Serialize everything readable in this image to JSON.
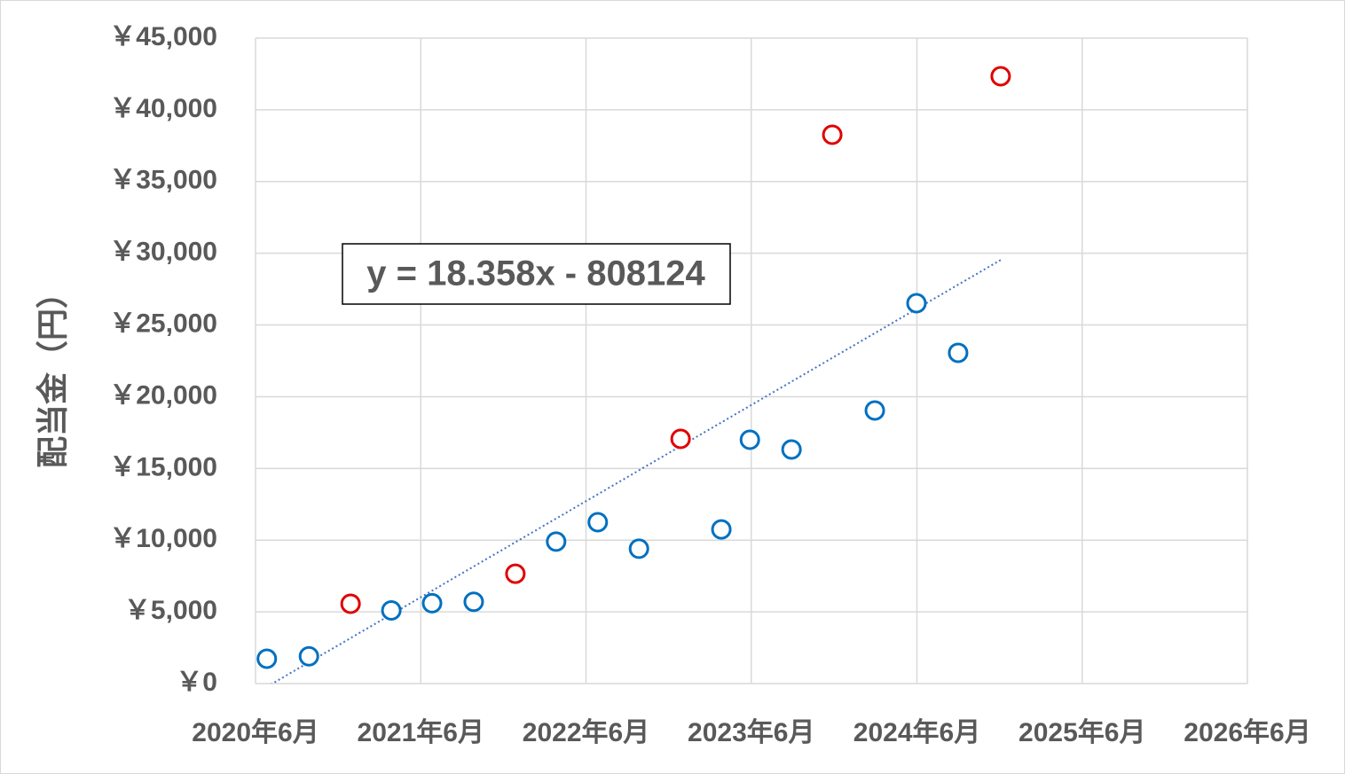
{
  "chart_data": {
    "type": "scatter",
    "y_label": "配当金（円）",
    "xlim": [
      43983,
      46174
    ],
    "xticks": [
      {
        "value": 43983,
        "label": "2020年6月"
      },
      {
        "value": 44348,
        "label": "2021年6月"
      },
      {
        "value": 44713,
        "label": "2022年6月"
      },
      {
        "value": 45078,
        "label": "2023年6月"
      },
      {
        "value": 45444,
        "label": "2024年6月"
      },
      {
        "value": 45809,
        "label": "2025年6月"
      },
      {
        "value": 46174,
        "label": "2026年6月"
      }
    ],
    "ylim": [
      0,
      45000
    ],
    "yticks": [
      {
        "value": 0,
        "label": "￥0"
      },
      {
        "value": 5000,
        "label": "￥5,000"
      },
      {
        "value": 10000,
        "label": "￥10,000"
      },
      {
        "value": 15000,
        "label": "￥15,000"
      },
      {
        "value": 20000,
        "label": "￥20,000"
      },
      {
        "value": 25000,
        "label": "￥25,000"
      },
      {
        "value": 30000,
        "label": "￥30,000"
      },
      {
        "value": 35000,
        "label": "￥35,000"
      },
      {
        "value": 40000,
        "label": "￥40,000"
      },
      {
        "value": 45000,
        "label": "￥45,000"
      }
    ],
    "grid": true,
    "series": [
      {
        "color": "#0070c0",
        "x": [
          44008,
          44101,
          44283,
          44373,
          44465,
          44647,
          44739,
          44830,
          45012,
          45075,
          45167,
          45351,
          45443,
          45535
        ],
        "values": [
          1730,
          1900,
          5100,
          5600,
          5700,
          9900,
          11250,
          9400,
          10750,
          17000,
          16320,
          19040,
          26520,
          23060
        ]
      },
      {
        "color": "#e00000",
        "x": [
          44193,
          44557,
          44922,
          45257,
          45629
        ],
        "values": [
          5560,
          7660,
          17060,
          38260,
          42340
        ]
      }
    ],
    "trendline": {
      "label": "y = 18.358x - 808124",
      "slope": 18.358,
      "intercept": -808124,
      "color": "#4472c4"
    }
  }
}
